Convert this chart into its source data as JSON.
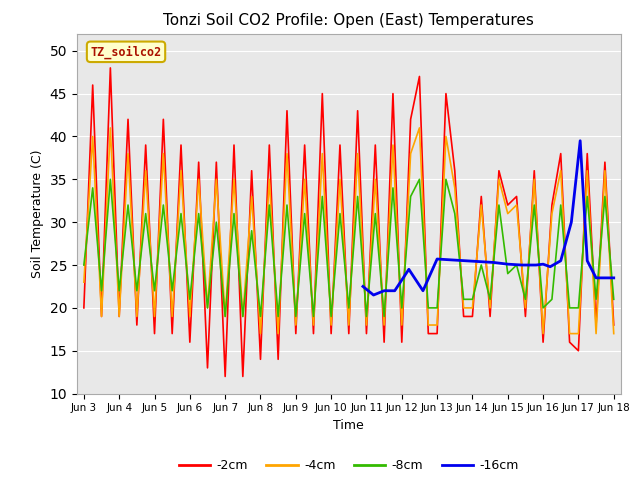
{
  "title": "Tonzi Soil CO2 Profile: Open (East) Temperatures",
  "xlabel": "Time",
  "ylabel": "Soil Temperature (C)",
  "ylim": [
    10,
    52
  ],
  "yticks": [
    10,
    15,
    20,
    25,
    30,
    35,
    40,
    45,
    50
  ],
  "bg_color": "#e8e8e8",
  "series_2cm_color": "#ff0000",
  "series_4cm_color": "#ffa500",
  "series_8cm_color": "#33bb00",
  "series_16cm_color": "#0000ee",
  "x_tick_labels": [
    "Jun 3",
    "Jun 4",
    "Jun 5",
    "Jun 6",
    "Jun 7",
    "Jun 8",
    "Jun 9",
    "Jun 10",
    "Jun 11",
    "Jun 12",
    "Jun 13",
    "Jun 14",
    "Jun 15",
    "Jun 16",
    "Jun 17",
    "Jun 18"
  ],
  "series_2cm_x": [
    0,
    0.25,
    0.5,
    0.75,
    1,
    1.25,
    1.5,
    1.75,
    2,
    2.25,
    2.5,
    2.75,
    3,
    3.25,
    3.5,
    3.75,
    4,
    4.25,
    4.5,
    4.75,
    5,
    5.25,
    5.5,
    5.75,
    6,
    6.25,
    6.5,
    6.75,
    7,
    7.25,
    7.5,
    7.75,
    8,
    8.25,
    8.5,
    8.75,
    9,
    9.25,
    9.5,
    9.75,
    10,
    10.25,
    10.5,
    10.75,
    11,
    11.25,
    11.5,
    11.75,
    12,
    12.25,
    12.5,
    12.75,
    13,
    13.25,
    13.5,
    13.75,
    14,
    14.25,
    14.5,
    14.75,
    15
  ],
  "series_2cm_y": [
    20,
    46,
    19,
    48,
    19,
    42,
    18,
    39,
    17,
    42,
    17,
    39,
    16,
    37,
    13,
    37,
    12,
    39,
    12,
    36,
    14,
    39,
    14,
    43,
    17,
    39,
    17,
    45,
    17,
    39,
    17,
    43,
    17,
    39,
    16,
    45,
    16,
    42,
    47,
    17,
    17,
    45,
    36,
    19,
    19,
    33,
    19,
    36,
    32,
    33,
    19,
    36,
    16,
    32,
    38,
    16,
    15,
    38,
    18,
    37,
    18
  ],
  "series_4cm_x": [
    0,
    0.25,
    0.5,
    0.75,
    1,
    1.25,
    1.5,
    1.75,
    2,
    2.25,
    2.5,
    2.75,
    3,
    3.25,
    3.5,
    3.75,
    4,
    4.25,
    4.5,
    4.75,
    5,
    5.25,
    5.5,
    5.75,
    6,
    6.25,
    6.5,
    6.75,
    7,
    7.25,
    7.5,
    7.75,
    8,
    8.25,
    8.5,
    8.75,
    9,
    9.25,
    9.5,
    9.75,
    10,
    10.25,
    10.5,
    10.75,
    11,
    11.25,
    11.5,
    11.75,
    12,
    12.25,
    12.5,
    12.75,
    13,
    13.25,
    13.5,
    13.75,
    14,
    14.25,
    14.5,
    14.75,
    15
  ],
  "series_4cm_y": [
    23,
    40,
    19,
    41,
    19,
    38,
    19,
    36,
    19,
    38,
    19,
    36,
    19,
    35,
    20,
    35,
    19,
    35,
    19,
    33,
    17,
    35,
    17,
    38,
    18,
    35,
    18,
    38,
    18,
    35,
    18,
    38,
    18,
    35,
    18,
    39,
    18,
    38,
    41,
    18,
    18,
    40,
    34,
    20,
    20,
    32,
    20,
    35,
    31,
    32,
    20,
    35,
    17,
    31,
    36,
    17,
    17,
    36,
    17,
    36,
    17
  ],
  "series_8cm_x": [
    0,
    0.25,
    0.5,
    0.75,
    1,
    1.25,
    1.5,
    1.75,
    2,
    2.25,
    2.5,
    2.75,
    3,
    3.25,
    3.5,
    3.75,
    4,
    4.25,
    4.5,
    4.75,
    5,
    5.25,
    5.5,
    5.75,
    6,
    6.25,
    6.5,
    6.75,
    7,
    7.25,
    7.5,
    7.75,
    8,
    8.25,
    8.5,
    8.75,
    9,
    9.25,
    9.5,
    9.75,
    10,
    10.25,
    10.5,
    10.75,
    11,
    11.25,
    11.5,
    11.75,
    12,
    12.25,
    12.5,
    12.75,
    13,
    13.25,
    13.5,
    13.75,
    14,
    14.25,
    14.5,
    14.75,
    15
  ],
  "series_8cm_y": [
    25,
    34,
    22,
    35,
    22,
    32,
    22,
    31,
    22,
    32,
    22,
    31,
    21,
    31,
    20,
    30,
    19,
    31,
    19,
    29,
    19,
    32,
    19,
    32,
    19,
    31,
    19,
    33,
    19,
    31,
    20,
    33,
    19,
    31,
    19,
    34,
    20,
    33,
    35,
    20,
    20,
    35,
    31,
    21,
    21,
    25,
    21,
    32,
    24,
    25,
    21,
    32,
    20,
    21,
    32,
    20,
    20,
    33,
    21,
    33,
    21
  ],
  "series_16cm_x": [
    7.9,
    8.2,
    8.5,
    8.8,
    9.2,
    9.6,
    10.0,
    10.4,
    10.8,
    11.2,
    11.6,
    12.0,
    12.4,
    12.8,
    13.0,
    13.2,
    13.5,
    13.8,
    14.05,
    14.25,
    14.5,
    15.0
  ],
  "series_16cm_y": [
    22.5,
    21.5,
    22.0,
    22.0,
    24.5,
    22.0,
    25.7,
    25.6,
    25.5,
    25.4,
    25.3,
    25.1,
    25.0,
    25.0,
    25.1,
    24.8,
    25.5,
    30.0,
    39.5,
    25.5,
    23.5,
    23.5
  ]
}
